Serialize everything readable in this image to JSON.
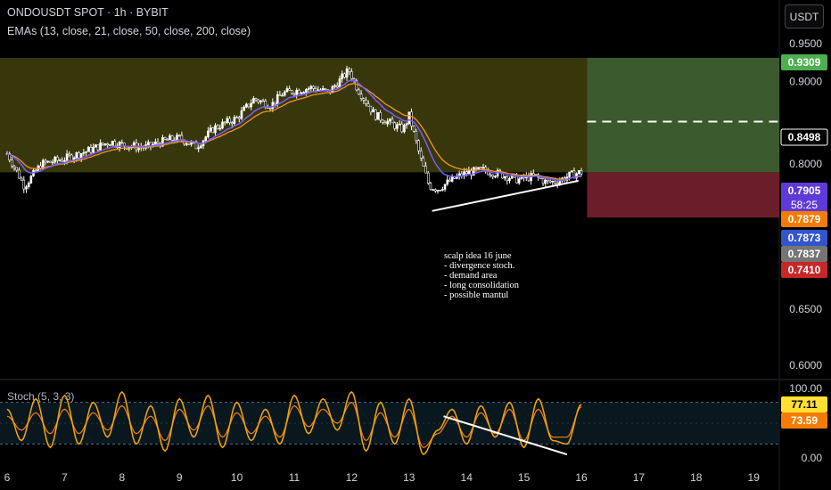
{
  "header": {
    "title": "ONDOUSDT SPOT · 1h · BYBIT",
    "indicator": "EMAs (13, close, 21, close, 50, close, 200, close)"
  },
  "currency_button": "USDT",
  "note": {
    "lines": [
      "scalp idea 16 june",
      "- divergence stoch.",
      "- demand area",
      "- long consolidation",
      "- possible mantul"
    ]
  },
  "stoch_title": "Stoch (5, 3, 3)",
  "colors": {
    "background": "#000000",
    "zone": "#3a3a0c",
    "target": "#3b5a2e",
    "stop": "#6b1e2a",
    "ema_fast": "#7b5cff",
    "ema_slow": "#f7931a",
    "stoch_k": "#f7a600",
    "stoch_d": "#e57a1a",
    "green_label": "#4caf50",
    "red_label": "#c62828",
    "blue_label": "#3355cc",
    "purple_label": "#5e3bd8",
    "orange_label": "#f57c00",
    "gray_label": "#757575",
    "yellow_label": "#ffe033"
  },
  "chart_data": [
    {
      "type": "candlestick",
      "title": "ONDOUSDT SPOT · 1h · BYBIT",
      "x_ticks": [
        "6",
        "7",
        "8",
        "9",
        "10",
        "11",
        "12",
        "13",
        "14",
        "15",
        "16",
        "17",
        "18",
        "19"
      ],
      "y_ticks": [
        "0.9500",
        "0.9000",
        "0.8000",
        "0.6500",
        "0.6000"
      ],
      "y_scale": "log",
      "ylim": [
        0.587,
        0.965
      ],
      "price_labels": [
        {
          "value": "0.9309",
          "color": "green_label"
        },
        {
          "value": "0.8498",
          "color": "outline"
        },
        {
          "value": "0.7905",
          "sub": "58:25",
          "color": "purple_label"
        },
        {
          "value": "0.7879",
          "color": "orange_label"
        },
        {
          "value": "0.7873",
          "color": "blue_label"
        },
        {
          "value": "0.7837",
          "color": "gray_label"
        },
        {
          "value": "0.7410",
          "color": "red_label"
        }
      ],
      "demand_zone": {
        "top": 0.9309,
        "bottom": 0.7905
      },
      "position": {
        "entry": 0.7905,
        "target": 0.9309,
        "stop": 0.741,
        "dashed_level": 0.8498,
        "day_start": 16.1,
        "day_end": 19.5
      },
      "series": [
        {
          "kind": "close",
          "x": [
            6.0,
            6.3,
            6.6,
            7.0,
            7.4,
            7.8,
            8.0,
            8.4,
            8.8,
            9.0,
            9.3,
            9.6,
            10.0,
            10.3,
            10.6,
            10.8,
            11.0,
            11.3,
            11.6,
            11.8,
            11.95,
            12.1,
            12.4,
            12.7,
            12.9,
            13.0,
            13.2,
            13.35,
            13.5,
            13.8,
            14.0,
            14.3,
            14.6,
            14.9,
            15.0,
            15.2,
            15.4,
            15.6,
            15.8,
            15.95,
            16.0
          ],
          "values": [
            0.812,
            0.775,
            0.8,
            0.806,
            0.815,
            0.826,
            0.822,
            0.819,
            0.828,
            0.83,
            0.82,
            0.842,
            0.854,
            0.878,
            0.87,
            0.885,
            0.888,
            0.892,
            0.886,
            0.902,
            0.915,
            0.891,
            0.858,
            0.847,
            0.84,
            0.857,
            0.806,
            0.775,
            0.772,
            0.784,
            0.79,
            0.793,
            0.788,
            0.782,
            0.784,
            0.786,
            0.779,
            0.781,
            0.787,
            0.79,
            0.7905
          ]
        }
      ],
      "ema_lines": [
        {
          "name": "13",
          "color": "ema_fast"
        },
        {
          "name": "21",
          "color": "ema_slow"
        }
      ],
      "trendline": {
        "x": [
          13.4,
          15.95
        ],
        "y": [
          0.748,
          0.781
        ]
      }
    },
    {
      "type": "line",
      "title": "Stoch (5, 3, 3)",
      "y_ticks": [
        "100.00",
        "0.00"
      ],
      "ylim": [
        0,
        100
      ],
      "bands": [
        80,
        20
      ],
      "labels": [
        {
          "value": "77.11",
          "color": "yellow_label"
        },
        {
          "value": "73.59",
          "color": "orange_label"
        }
      ],
      "series": [
        {
          "name": "%K",
          "x": [
            6.0,
            6.25,
            6.5,
            6.75,
            7.0,
            7.25,
            7.5,
            7.75,
            8.0,
            8.25,
            8.5,
            8.75,
            9.0,
            9.25,
            9.5,
            9.75,
            10.0,
            10.25,
            10.5,
            10.75,
            11.0,
            11.25,
            11.5,
            11.75,
            12.0,
            12.25,
            12.5,
            12.75,
            13.0,
            13.25,
            13.5,
            13.75,
            14.0,
            14.25,
            14.5,
            14.75,
            15.0,
            15.25,
            15.5,
            15.75,
            16.0
          ],
          "values": [
            70,
            25,
            85,
            15,
            90,
            20,
            80,
            30,
            95,
            20,
            75,
            10,
            85,
            30,
            90,
            15,
            80,
            25,
            70,
            20,
            90,
            35,
            85,
            40,
            95,
            10,
            80,
            20,
            85,
            5,
            40,
            70,
            20,
            75,
            30,
            80,
            15,
            85,
            25,
            20,
            77.11
          ]
        },
        {
          "name": "%D",
          "x": [
            6.0,
            6.25,
            6.5,
            6.75,
            7.0,
            7.25,
            7.5,
            7.75,
            8.0,
            8.25,
            8.5,
            8.75,
            9.0,
            9.25,
            9.5,
            9.75,
            10.0,
            10.25,
            10.5,
            10.75,
            11.0,
            11.25,
            11.5,
            11.75,
            12.0,
            12.25,
            12.5,
            12.75,
            13.0,
            13.25,
            13.5,
            13.75,
            14.0,
            14.25,
            14.5,
            14.75,
            15.0,
            15.25,
            15.5,
            15.75,
            16.0
          ],
          "values": [
            60,
            40,
            65,
            35,
            70,
            35,
            65,
            40,
            75,
            35,
            60,
            25,
            70,
            40,
            75,
            30,
            65,
            35,
            60,
            30,
            75,
            45,
            70,
            50,
            80,
            25,
            65,
            30,
            70,
            15,
            35,
            60,
            30,
            65,
            35,
            70,
            25,
            70,
            30,
            30,
            73.59
          ]
        }
      ],
      "trendline": {
        "x": [
          13.6,
          15.75
        ],
        "y": [
          60,
          5
        ]
      }
    }
  ]
}
